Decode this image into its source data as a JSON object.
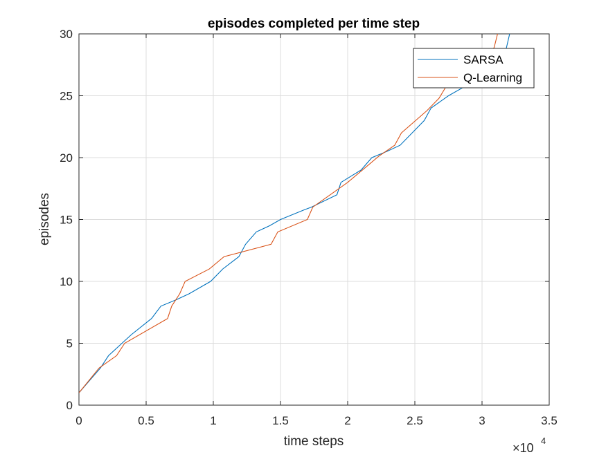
{
  "chart_data": {
    "type": "line",
    "title": "episodes completed per time step",
    "xlabel": "time steps",
    "ylabel": "episodes",
    "xlim": [
      0,
      35000
    ],
    "ylim": [
      0,
      30
    ],
    "x_ticks": [
      0,
      5000,
      10000,
      15000,
      20000,
      25000,
      30000,
      35000
    ],
    "x_tick_labels": [
      "0",
      "0.5",
      "1",
      "1.5",
      "2",
      "2.5",
      "3",
      "3.5"
    ],
    "y_ticks": [
      0,
      5,
      10,
      15,
      20,
      25,
      30
    ],
    "y_tick_labels": [
      "0",
      "5",
      "10",
      "15",
      "20",
      "25",
      "30"
    ],
    "x_exponent_base": "×10",
    "x_exponent_power": "4",
    "grid": true,
    "legend_location": "top-right",
    "series": [
      {
        "name": "SARSA",
        "color": "#0072BD",
        "points": [
          [
            0,
            1
          ],
          [
            1600,
            3
          ],
          [
            2200,
            4
          ],
          [
            3200,
            5
          ],
          [
            3900,
            5.7
          ],
          [
            5400,
            7
          ],
          [
            6100,
            8
          ],
          [
            7200,
            8.5
          ],
          [
            8200,
            9
          ],
          [
            9800,
            10
          ],
          [
            10700,
            11
          ],
          [
            11900,
            12
          ],
          [
            12400,
            13
          ],
          [
            13200,
            14
          ],
          [
            14200,
            14.5
          ],
          [
            15000,
            15
          ],
          [
            16800,
            15.8
          ],
          [
            17300,
            16
          ],
          [
            19200,
            17
          ],
          [
            19500,
            18
          ],
          [
            21000,
            19
          ],
          [
            21800,
            20
          ],
          [
            22900,
            20.5
          ],
          [
            23900,
            21
          ],
          [
            25700,
            23
          ],
          [
            26200,
            24
          ],
          [
            27500,
            25
          ],
          [
            28800,
            25.8
          ],
          [
            30500,
            26.8
          ],
          [
            31500,
            27.8
          ],
          [
            31800,
            28.8
          ],
          [
            32100,
            30.2
          ]
        ]
      },
      {
        "name": "Q-Learning",
        "color": "#D95319",
        "points": [
          [
            0,
            1
          ],
          [
            1500,
            3
          ],
          [
            2800,
            4
          ],
          [
            3400,
            5
          ],
          [
            6600,
            7
          ],
          [
            6900,
            8
          ],
          [
            7500,
            9
          ],
          [
            7900,
            10
          ],
          [
            9700,
            11
          ],
          [
            10800,
            12
          ],
          [
            14300,
            13
          ],
          [
            14800,
            14
          ],
          [
            17000,
            15
          ],
          [
            17400,
            16
          ],
          [
            20000,
            18
          ],
          [
            21100,
            19
          ],
          [
            22300,
            20.1
          ],
          [
            23500,
            21
          ],
          [
            24000,
            22
          ],
          [
            25900,
            23.8
          ],
          [
            26800,
            24.8
          ],
          [
            27800,
            26.6
          ],
          [
            28900,
            27.9
          ],
          [
            30400,
            28.3
          ],
          [
            30900,
            28.9
          ],
          [
            31200,
            30.2
          ]
        ]
      }
    ]
  }
}
